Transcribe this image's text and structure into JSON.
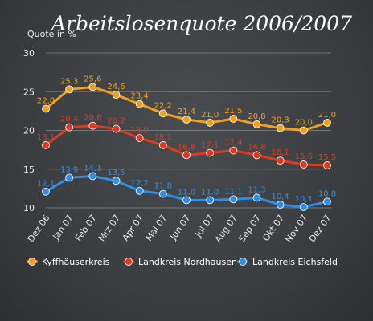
{
  "chart_data": {
    "type": "line",
    "title": "Arbeitslosenquote 2006/2007",
    "ylabel": "Quote in %",
    "xlabel": "",
    "ylim": [
      10,
      30
    ],
    "yticks": [
      10,
      15,
      20,
      25,
      30
    ],
    "grid": true,
    "legend_position": "bottom",
    "categories": [
      "Dez 06",
      "Jan 07",
      "Feb 07",
      "Mrz 07",
      "Apr 07",
      "Mai 07",
      "Jun 07",
      "Jul 07",
      "Aug 07",
      "Sep 07",
      "Okt 07",
      "Nov 07",
      "Dez 07"
    ],
    "series": [
      {
        "name": "Kyffhäuserkreis",
        "color": "#f0a020",
        "values": [
          22.8,
          25.3,
          25.6,
          24.6,
          23.4,
          22.2,
          21.4,
          21.0,
          21.5,
          20.8,
          20.3,
          20.0,
          21.0
        ],
        "labels": [
          "22,8",
          "25,3",
          "25,6",
          "24,6",
          "23,4",
          "22,2",
          "21,4",
          "21,0",
          "21,5",
          "20,8",
          "20,3",
          "20,0",
          "21,0"
        ]
      },
      {
        "name": "Landkreis Nordhausen",
        "color": "#e03a1e",
        "values": [
          18.1,
          20.4,
          20.6,
          20.2,
          19.0,
          18.1,
          16.8,
          17.1,
          17.4,
          16.8,
          16.1,
          15.6,
          15.5
        ],
        "labels": [
          "18,1",
          "20,4",
          "20,6",
          "20,2",
          "19,0",
          "18,1",
          "16,8",
          "17,1",
          "17,4",
          "16,8",
          "16,1",
          "15,6",
          "15,5"
        ]
      },
      {
        "name": "Landkreis Eichsfeld",
        "color": "#2f8ee8",
        "values": [
          12.1,
          13.9,
          14.1,
          13.5,
          12.2,
          11.8,
          11.0,
          11.0,
          11.1,
          11.3,
          10.4,
          10.1,
          10.8
        ],
        "labels": [
          "12,1",
          "13,9",
          "14,1",
          "13,5",
          "12,2",
          "11,8",
          "11,0",
          "11,0",
          "11,1",
          "11,3",
          "10,4",
          "10,1",
          "10,8"
        ]
      }
    ]
  }
}
